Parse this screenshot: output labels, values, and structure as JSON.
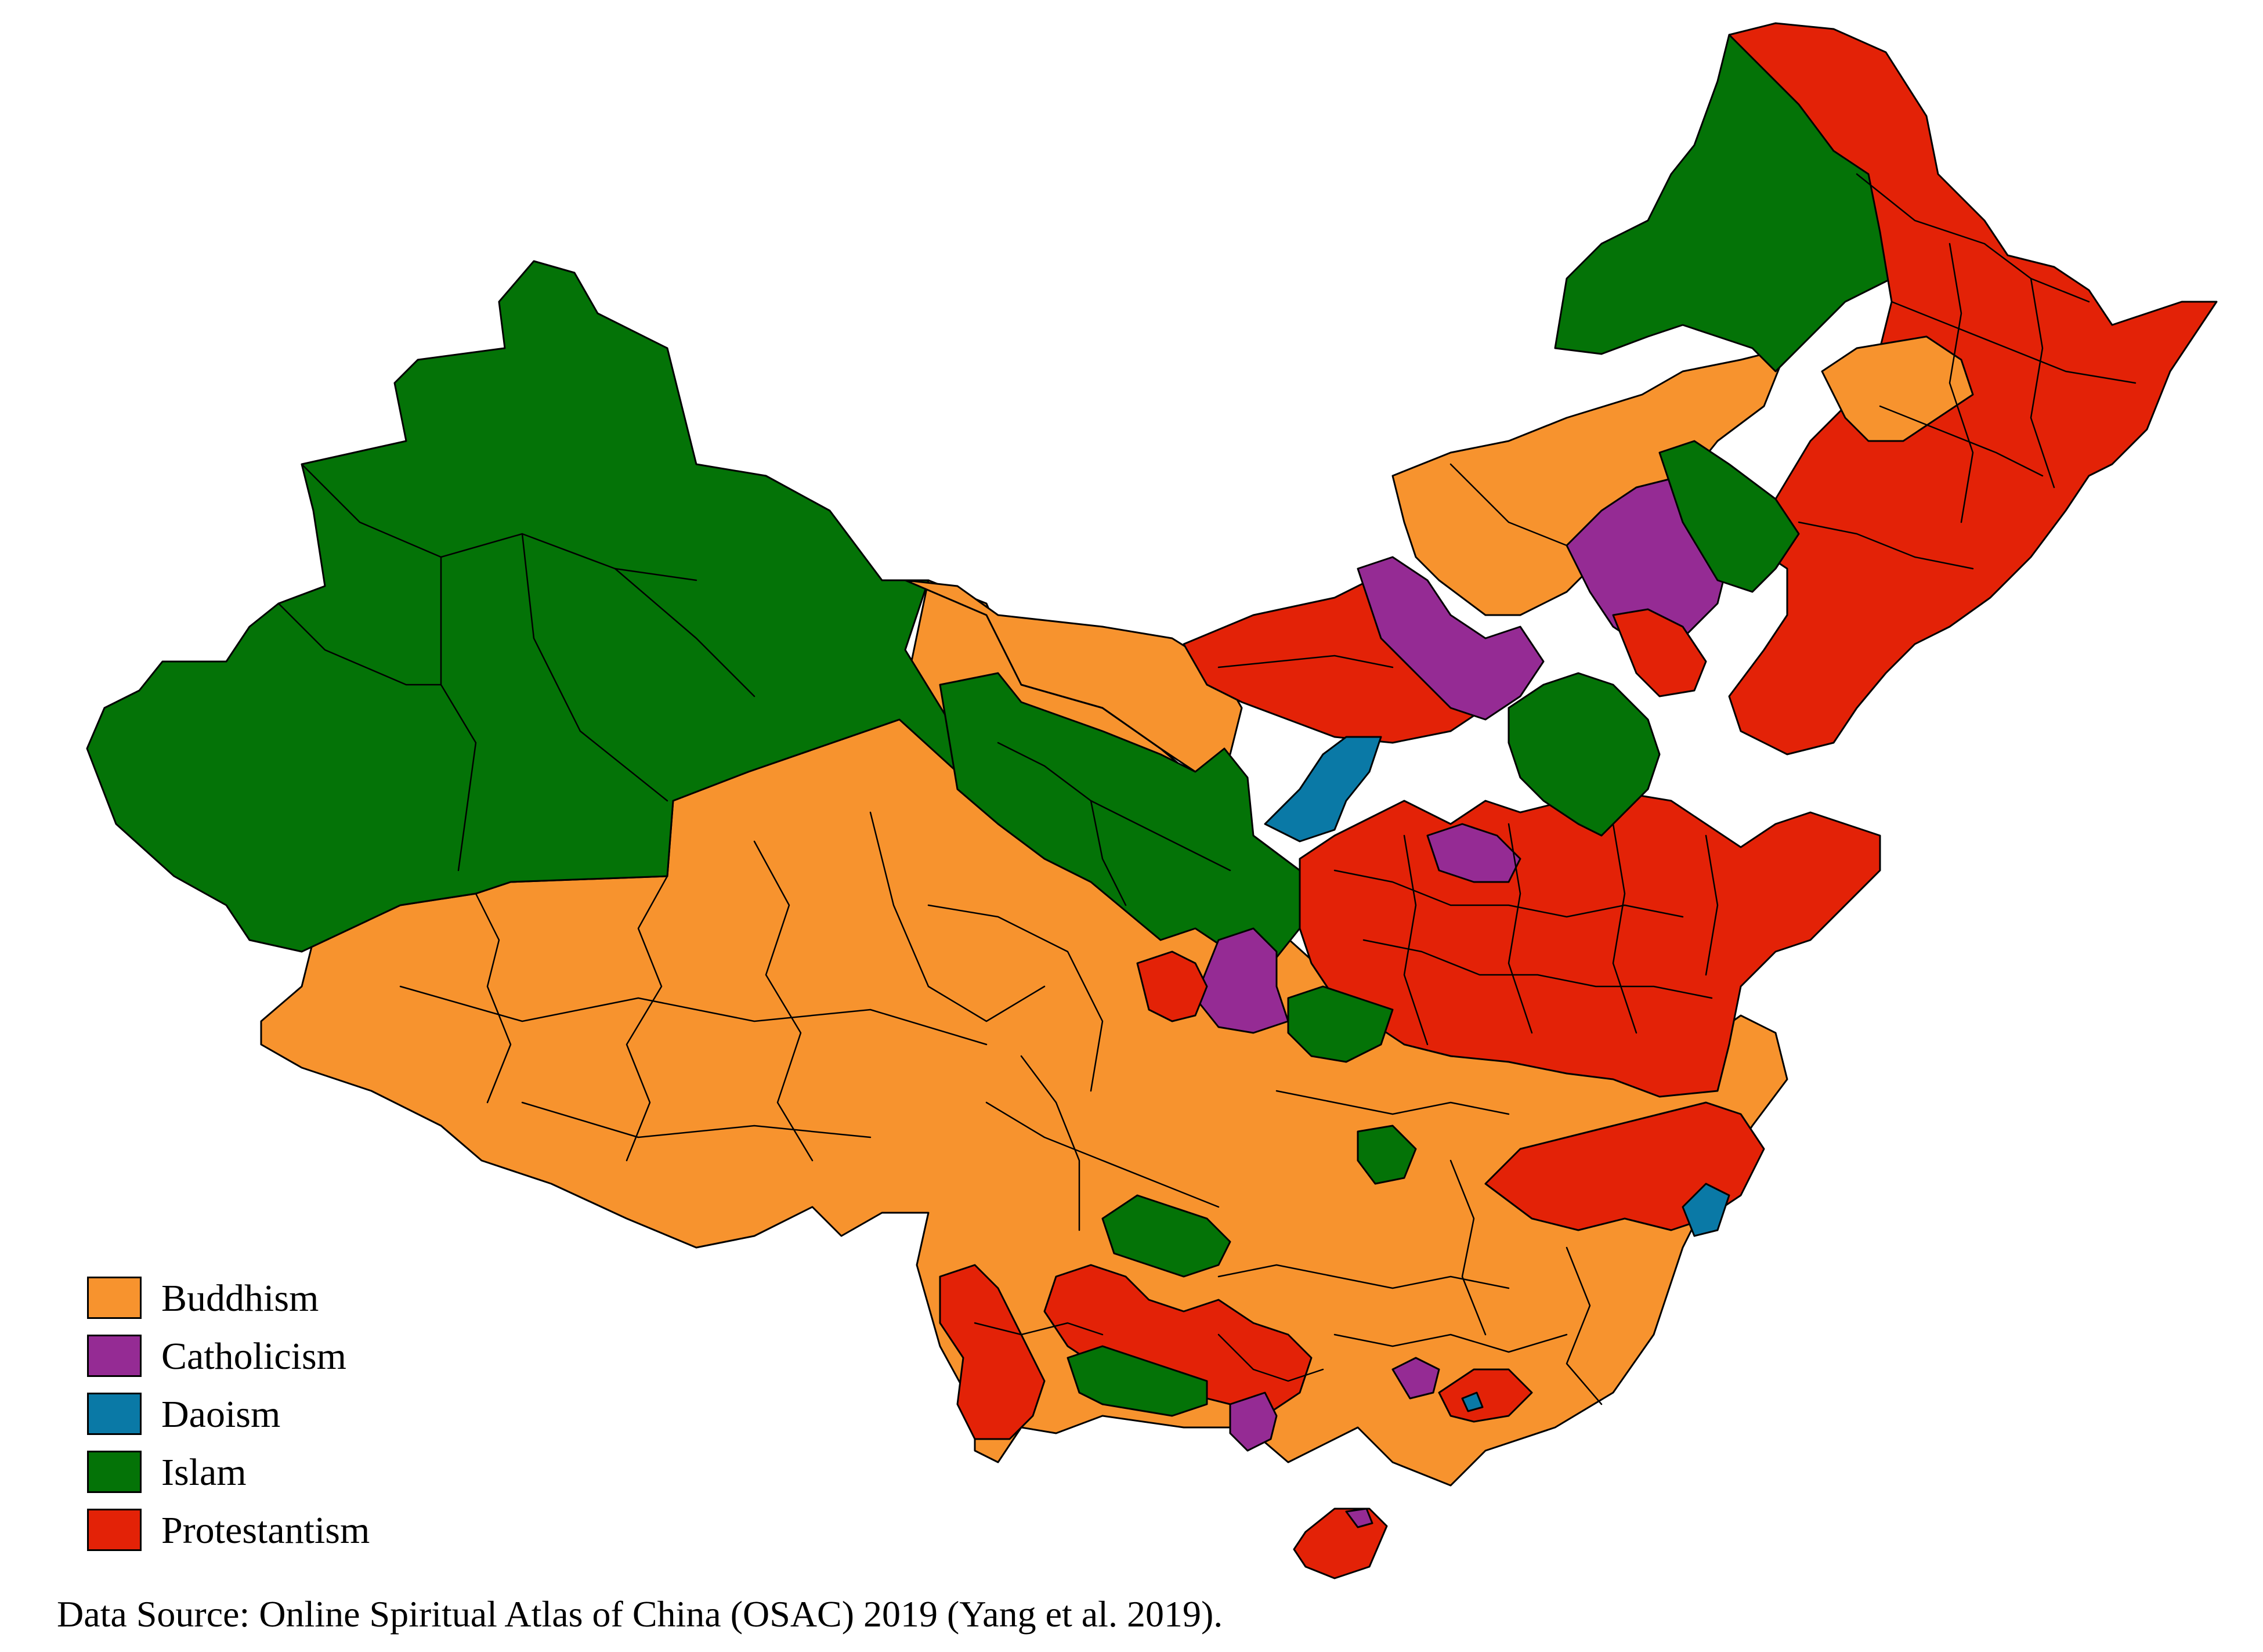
{
  "map": {
    "legend": [
      {
        "label": "Buddhism",
        "color": "#F7932E"
      },
      {
        "label": "Catholicism",
        "color": "#952B94"
      },
      {
        "label": "Daoism",
        "color": "#0A79A6"
      },
      {
        "label": "Islam",
        "color": "#047307"
      },
      {
        "label": "Protestantism",
        "color": "#E32207"
      }
    ],
    "source_note": "Data Source: Online Spiritual Atlas of China (OSAC) 2019 (Yang et al. 2019)."
  }
}
